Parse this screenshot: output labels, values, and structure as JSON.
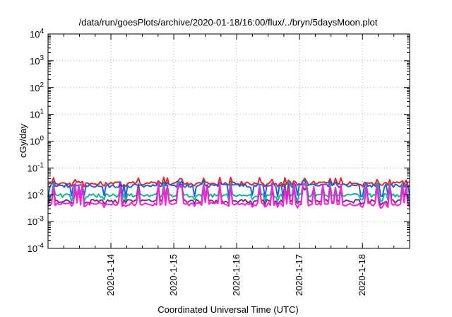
{
  "chart_data": {
    "type": "line",
    "title": "/data/run/goesPlots/archive/2020-01-18/16:00/flux/../bryn/5daysMoon.plot",
    "xlabel": "Coordinated Universal Time (UTC)",
    "ylabel": "cGy/day",
    "yscale": "log",
    "ylim": [
      0.0001,
      10000
    ],
    "xlim": [
      0,
      5.75
    ],
    "y_ticks": [
      {
        "base": "10",
        "exp": "-4",
        "value": 0.0001
      },
      {
        "base": "10",
        "exp": "-3",
        "value": 0.001
      },
      {
        "base": "10",
        "exp": "-2",
        "value": 0.01
      },
      {
        "base": "10",
        "exp": "-1",
        "value": 0.1
      },
      {
        "base": "10",
        "exp": "0",
        "value": 1
      },
      {
        "base": "10",
        "exp": "1",
        "value": 10
      },
      {
        "base": "10",
        "exp": "2",
        "value": 100
      },
      {
        "base": "10",
        "exp": "3",
        "value": 1000
      },
      {
        "base": "10",
        "exp": "4",
        "value": 10000
      }
    ],
    "x_ticks": [
      {
        "label": "2020-1-14",
        "value": 1
      },
      {
        "label": "2020-1-15",
        "value": 2
      },
      {
        "label": "2020-1-16",
        "value": 3
      },
      {
        "label": "2020-1-17",
        "value": 4
      },
      {
        "label": "2020-1-18",
        "value": 5
      }
    ],
    "grid": true,
    "legend": "none",
    "series": [
      {
        "color": "#e8262a",
        "base": 0.027,
        "spike_max": 0.045,
        "dip_min": 0.022
      },
      {
        "color": "#1f5fe0",
        "base": 0.022,
        "spike_max": 0.035,
        "dip_min": 0.009
      },
      {
        "color": "#1ab29a",
        "base": 0.0095,
        "spike_max": 0.03,
        "dip_min": 0.006
      },
      {
        "color": "#7a2f8a",
        "base": 0.0058,
        "spike_max": 0.025,
        "dip_min": 0.0045
      },
      {
        "color": "#ff1fd8",
        "base": 0.0045,
        "spike_max": 0.028,
        "dip_min": 0.0035
      }
    ]
  }
}
